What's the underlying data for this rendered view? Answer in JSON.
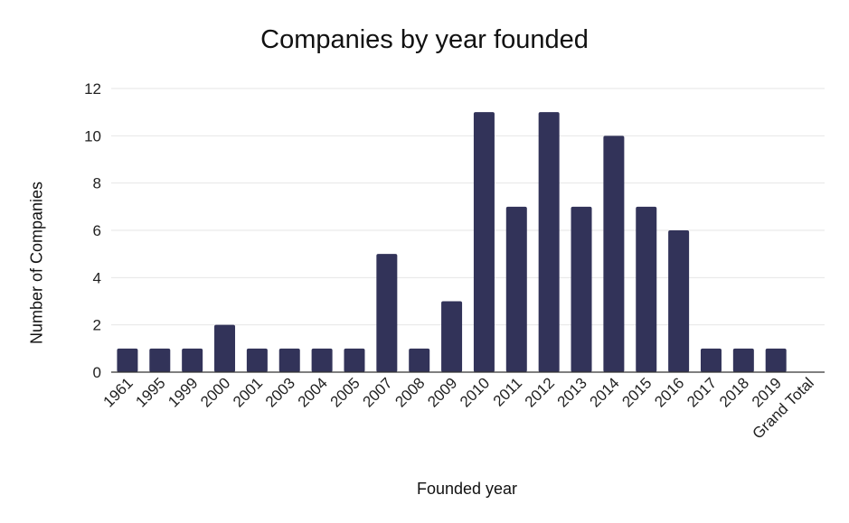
{
  "chart_data": {
    "type": "bar",
    "title": "Companies by year founded",
    "xlabel": "Founded year",
    "ylabel": "Number of Companies",
    "ylim": [
      0,
      12
    ],
    "yticks": [
      0,
      2,
      4,
      6,
      8,
      10,
      12
    ],
    "grid": true,
    "legend": "none",
    "bar_color": "#323359",
    "categories": [
      "1961",
      "1995",
      "1999",
      "2000",
      "2001",
      "2003",
      "2004",
      "2005",
      "2007",
      "2008",
      "2009",
      "2010",
      "2011",
      "2012",
      "2013",
      "2014",
      "2015",
      "2016",
      "2017",
      "2018",
      "2019",
      "Grand Total"
    ],
    "values": [
      1,
      1,
      1,
      2,
      1,
      1,
      1,
      1,
      5,
      1,
      3,
      11,
      7,
      11,
      7,
      10,
      7,
      6,
      1,
      1,
      1,
      0
    ]
  }
}
